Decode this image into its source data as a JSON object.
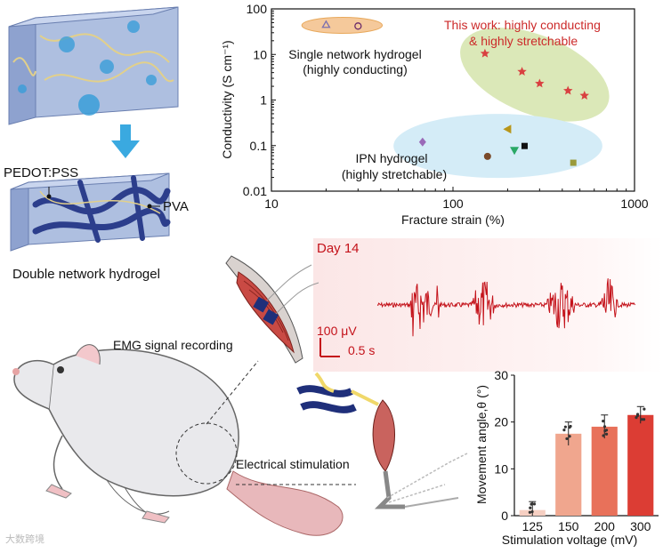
{
  "hydrogel": {
    "label_pedot": "PEDOT:PSS",
    "label_pva": "PVA",
    "caption": "Double network hydrogel"
  },
  "scatter": {
    "chart_data": {
      "type": "scatter",
      "xscale": "log",
      "yscale": "log",
      "xlim": [
        10,
        1000
      ],
      "ylim": [
        0.01,
        100
      ],
      "xlabel": "Fracture strain (%)",
      "ylabel": "Conductivity (S cm⁻¹)",
      "xticks": [
        "10",
        "100",
        "1000"
      ],
      "yticks": [
        "100",
        "10",
        "1",
        "0.1",
        "0.01"
      ],
      "groups": [
        {
          "name": "Single network hydrogel (highly conducting)",
          "label_line1": "Single network hydrogel",
          "label_line2": "(highly conducting)",
          "fill": "#f5c99b",
          "points": [
            {
              "x": 20,
              "y": 45,
              "marker": "triangle-open",
              "color": "#7a6fb0"
            },
            {
              "x": 30,
              "y": 42,
              "marker": "circle-open",
              "color": "#6a2a6a"
            }
          ]
        },
        {
          "name": "This work: highly conducting & highly stretchable",
          "label_line1": "This work: highly conducting",
          "label_line2": "& highly stretchable",
          "fill": "#dbe8b8",
          "points": [
            {
              "x": 150,
              "y": 10.5,
              "marker": "star",
              "color": "#d94040"
            },
            {
              "x": 240,
              "y": 4.2,
              "marker": "star",
              "color": "#d94040"
            },
            {
              "x": 300,
              "y": 2.3,
              "marker": "star",
              "color": "#d94040"
            },
            {
              "x": 430,
              "y": 1.6,
              "marker": "star",
              "color": "#d94040"
            },
            {
              "x": 530,
              "y": 1.25,
              "marker": "star",
              "color": "#d94040"
            }
          ]
        },
        {
          "name": "IPN hydrogel (highly stretchable)",
          "label_line1": "IPN hydrogel",
          "label_line2": "(highly stretchable)",
          "fill": "#d4ecf7",
          "points": [
            {
              "x": 68,
              "y": 0.12,
              "marker": "diamond",
              "color": "#9a6ab8"
            },
            {
              "x": 155,
              "y": 0.058,
              "marker": "hexagon",
              "color": "#7a4a2a"
            },
            {
              "x": 200,
              "y": 0.23,
              "marker": "triangle-left",
              "color": "#b8961a"
            },
            {
              "x": 218,
              "y": 0.078,
              "marker": "triangle-down",
              "color": "#2aa866"
            },
            {
              "x": 248,
              "y": 0.098,
              "marker": "square",
              "color": "#111111"
            },
            {
              "x": 460,
              "y": 0.042,
              "marker": "square",
              "color": "#9a9a3a"
            }
          ]
        }
      ]
    }
  },
  "emg": {
    "day_label": "Day 14",
    "amp_scale": "100 μV",
    "time_scale": "0.5 s",
    "recording_label": "EMG signal recording",
    "stim_label": "Electrical stimulation",
    "colors": {
      "signal": "#c4121a",
      "text": "#c4121a"
    }
  },
  "bar": {
    "chart_data": {
      "type": "bar",
      "categories": [
        "125",
        "150",
        "200",
        "300"
      ],
      "values": [
        1.2,
        17.5,
        19.0,
        21.5
      ],
      "errors": [
        1.8,
        2.5,
        2.5,
        1.8
      ],
      "colors": [
        "#f6cfc2",
        "#f0a68e",
        "#e8715a",
        "#dc3d34"
      ],
      "ylim": [
        0,
        30
      ],
      "yticks": [
        "0",
        "10",
        "20",
        "30"
      ],
      "xlabel": "Stimulation voltage (mV)",
      "ylabel": "Movement angle,θ (°)"
    }
  },
  "watermark": "大数跨境"
}
